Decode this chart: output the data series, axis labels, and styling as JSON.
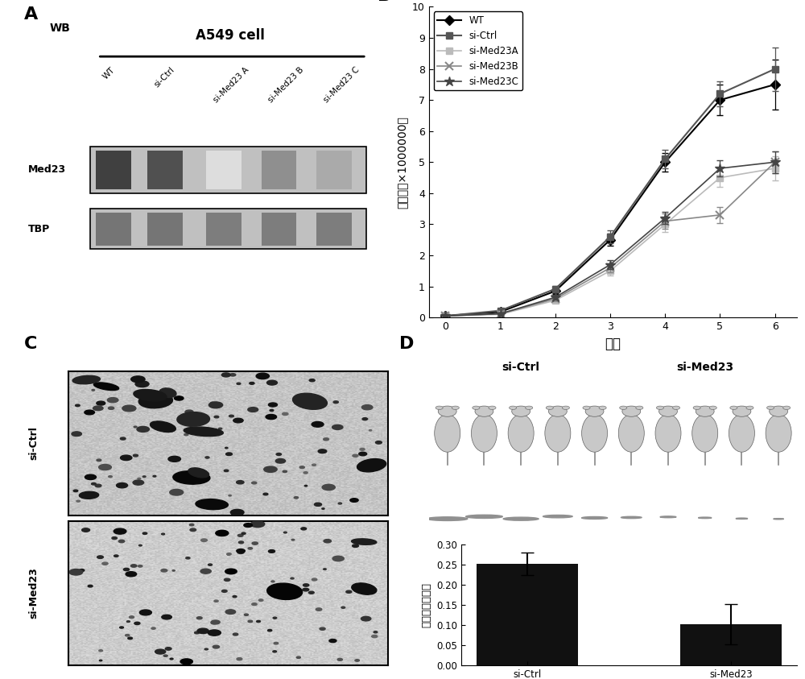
{
  "panel_label_fontsize": 16,
  "panel_label_fontweight": "bold",
  "panelA": {
    "title_wb": "WB",
    "title_cell": "A549 cell",
    "col_labels": [
      "WT",
      "si-Ctrl",
      "si-Med23 A",
      "si-Med23 B",
      "si-Med23 C"
    ],
    "med23_intensities": [
      0.85,
      0.78,
      0.15,
      0.5,
      0.38
    ],
    "tbp_intensities": [
      0.72,
      0.72,
      0.68,
      0.68,
      0.68
    ]
  },
  "panelB": {
    "x": [
      0,
      1,
      2,
      3,
      4,
      5,
      6
    ],
    "series": {
      "WT": {
        "y": [
          0.05,
          0.18,
          0.85,
          2.5,
          5.0,
          7.0,
          7.5
        ],
        "yerr": [
          0.02,
          0.05,
          0.1,
          0.2,
          0.3,
          0.5,
          0.8
        ],
        "color": "#000000",
        "marker": "D",
        "linestyle": "-",
        "linewidth": 1.5
      },
      "si-Ctrl": {
        "y": [
          0.05,
          0.22,
          0.92,
          2.6,
          5.1,
          7.2,
          8.0
        ],
        "yerr": [
          0.02,
          0.05,
          0.1,
          0.2,
          0.3,
          0.4,
          0.7
        ],
        "color": "#555555",
        "marker": "s",
        "linestyle": "-",
        "linewidth": 1.5
      },
      "si-Med23A": {
        "y": [
          0.05,
          0.1,
          0.55,
          1.5,
          3.0,
          4.5,
          4.8
        ],
        "yerr": [
          0.02,
          0.04,
          0.08,
          0.15,
          0.25,
          0.3,
          0.4
        ],
        "color": "#bbbbbb",
        "marker": "s",
        "linestyle": "-",
        "linewidth": 1.2
      },
      "si-Med23B": {
        "y": [
          0.05,
          0.12,
          0.6,
          1.6,
          3.1,
          3.3,
          5.0
        ],
        "yerr": [
          0.02,
          0.04,
          0.08,
          0.15,
          0.25,
          0.25,
          0.35
        ],
        "color": "#888888",
        "marker": "x",
        "linestyle": "-",
        "linewidth": 1.2
      },
      "si-Med23C": {
        "y": [
          0.05,
          0.12,
          0.65,
          1.7,
          3.2,
          4.8,
          5.0
        ],
        "yerr": [
          0.02,
          0.04,
          0.08,
          0.15,
          0.2,
          0.25,
          0.35
        ],
        "color": "#444444",
        "marker": "*",
        "linestyle": "-",
        "linewidth": 1.2
      }
    },
    "xlabel": "天数",
    "ylabel": "细胞数（×1000000）",
    "ylim": [
      0,
      10
    ],
    "yticks": [
      0,
      1,
      2,
      3,
      4,
      5,
      6,
      7,
      8,
      9,
      10
    ],
    "xticks": [
      0,
      1,
      2,
      3,
      4,
      5,
      6
    ],
    "legend_labels": [
      "WT",
      "si-Ctrl",
      "si-Med23A",
      "si-Med23B",
      "si-Med23C"
    ]
  },
  "panelD_bar": {
    "categories": [
      "si-Ctrl",
      "si-Med23"
    ],
    "values": [
      0.252,
      0.102
    ],
    "errors": [
      0.028,
      0.05
    ],
    "bar_color": "#111111",
    "ylabel": "肿瘾质量（克）",
    "ylim": [
      0,
      0.3
    ],
    "yticks": [
      0,
      0.05,
      0.1,
      0.15,
      0.2,
      0.25,
      0.3
    ]
  },
  "bg_color": "#ffffff",
  "text_color": "#000000"
}
